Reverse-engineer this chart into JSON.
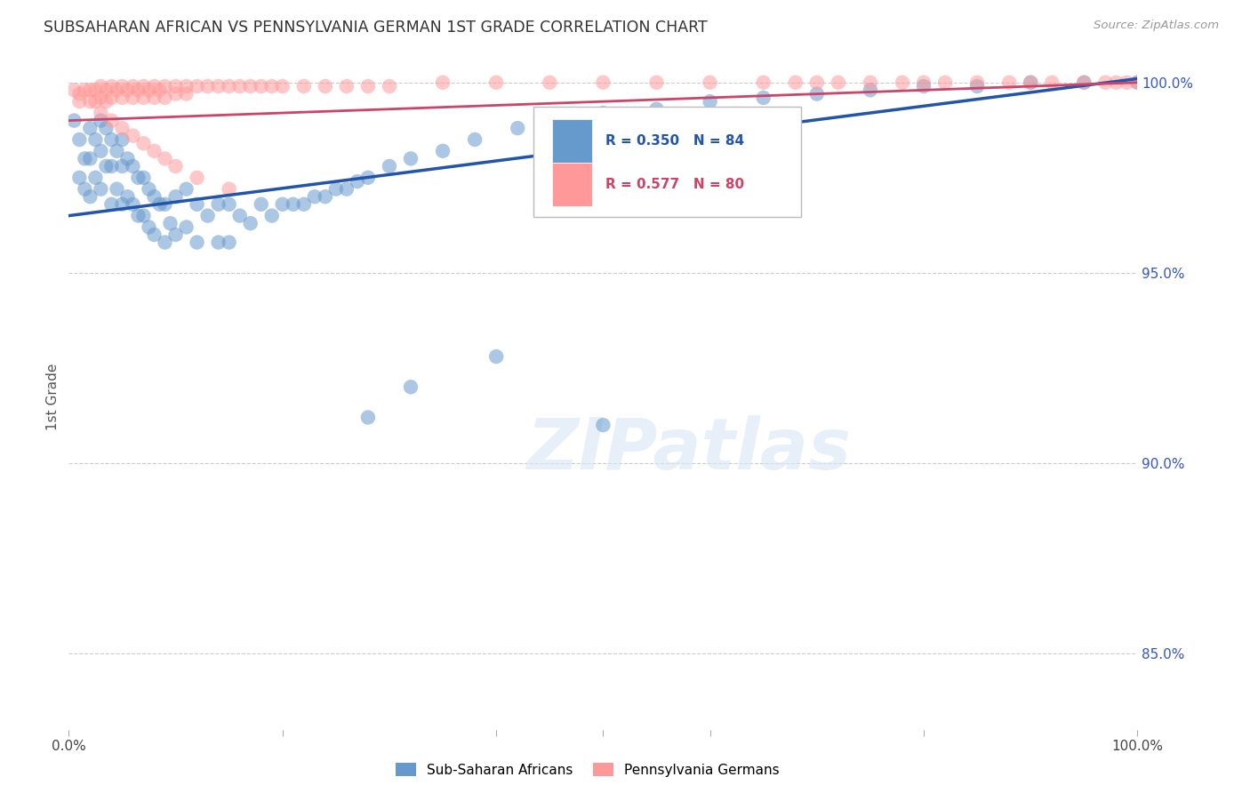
{
  "title": "SUBSAHARAN AFRICAN VS PENNSYLVANIA GERMAN 1ST GRADE CORRELATION CHART",
  "source": "Source: ZipAtlas.com",
  "ylabel": "1st Grade",
  "blue_R": 0.35,
  "blue_N": 84,
  "pink_R": 0.577,
  "pink_N": 80,
  "blue_color": "#6699CC",
  "pink_color": "#FF9999",
  "blue_line_color": "#2255AA",
  "pink_line_color": "#CC4466",
  "legend_label_blue": "Sub-Saharan Africans",
  "legend_label_pink": "Pennsylvania Germans",
  "watermark": "ZIPatlas",
  "xlim": [
    0.0,
    1.0
  ],
  "ylim": [
    0.83,
    1.005
  ],
  "yticks": [
    0.85,
    0.9,
    0.95,
    1.0
  ],
  "ytick_labels": [
    "85.0%",
    "90.0%",
    "95.0%",
    "100.0%"
  ],
  "blue_trend_start": 0.965,
  "blue_trend_end": 1.001,
  "pink_trend_start": 0.99,
  "pink_trend_end": 1.0,
  "blue_x": [
    0.005,
    0.01,
    0.01,
    0.015,
    0.015,
    0.02,
    0.02,
    0.02,
    0.025,
    0.025,
    0.03,
    0.03,
    0.03,
    0.035,
    0.035,
    0.04,
    0.04,
    0.04,
    0.045,
    0.045,
    0.05,
    0.05,
    0.05,
    0.055,
    0.055,
    0.06,
    0.06,
    0.065,
    0.065,
    0.07,
    0.07,
    0.075,
    0.075,
    0.08,
    0.08,
    0.085,
    0.09,
    0.09,
    0.095,
    0.1,
    0.1,
    0.11,
    0.11,
    0.12,
    0.12,
    0.13,
    0.14,
    0.14,
    0.15,
    0.15,
    0.16,
    0.17,
    0.18,
    0.19,
    0.2,
    0.21,
    0.22,
    0.23,
    0.24,
    0.25,
    0.26,
    0.27,
    0.28,
    0.3,
    0.32,
    0.35,
    0.38,
    0.42,
    0.45,
    0.5,
    0.55,
    0.6,
    0.65,
    0.7,
    0.75,
    0.8,
    0.85,
    0.9,
    0.95,
    1.0,
    0.28,
    0.32,
    0.4,
    0.5
  ],
  "blue_y": [
    0.99,
    0.985,
    0.975,
    0.98,
    0.972,
    0.988,
    0.98,
    0.97,
    0.985,
    0.975,
    0.99,
    0.982,
    0.972,
    0.988,
    0.978,
    0.985,
    0.978,
    0.968,
    0.982,
    0.972,
    0.985,
    0.978,
    0.968,
    0.98,
    0.97,
    0.978,
    0.968,
    0.975,
    0.965,
    0.975,
    0.965,
    0.972,
    0.962,
    0.97,
    0.96,
    0.968,
    0.968,
    0.958,
    0.963,
    0.97,
    0.96,
    0.972,
    0.962,
    0.968,
    0.958,
    0.965,
    0.968,
    0.958,
    0.968,
    0.958,
    0.965,
    0.963,
    0.968,
    0.965,
    0.968,
    0.968,
    0.968,
    0.97,
    0.97,
    0.972,
    0.972,
    0.974,
    0.975,
    0.978,
    0.98,
    0.982,
    0.985,
    0.988,
    0.99,
    0.992,
    0.993,
    0.995,
    0.996,
    0.997,
    0.998,
    0.999,
    0.999,
    1.0,
    1.0,
    1.0,
    0.912,
    0.92,
    0.928,
    0.91
  ],
  "pink_x": [
    0.005,
    0.01,
    0.01,
    0.015,
    0.02,
    0.02,
    0.025,
    0.025,
    0.03,
    0.03,
    0.035,
    0.035,
    0.04,
    0.04,
    0.045,
    0.05,
    0.05,
    0.055,
    0.06,
    0.06,
    0.065,
    0.07,
    0.07,
    0.075,
    0.08,
    0.08,
    0.085,
    0.09,
    0.09,
    0.1,
    0.1,
    0.11,
    0.11,
    0.12,
    0.13,
    0.14,
    0.15,
    0.16,
    0.17,
    0.18,
    0.19,
    0.2,
    0.22,
    0.24,
    0.26,
    0.28,
    0.3,
    0.35,
    0.4,
    0.45,
    0.5,
    0.55,
    0.6,
    0.65,
    0.68,
    0.7,
    0.72,
    0.75,
    0.78,
    0.8,
    0.82,
    0.85,
    0.88,
    0.9,
    0.92,
    0.95,
    0.97,
    0.98,
    0.99,
    1.0,
    0.03,
    0.04,
    0.05,
    0.06,
    0.07,
    0.08,
    0.09,
    0.1,
    0.12,
    0.15
  ],
  "pink_y": [
    0.998,
    0.997,
    0.995,
    0.998,
    0.998,
    0.995,
    0.998,
    0.995,
    0.999,
    0.996,
    0.998,
    0.995,
    0.999,
    0.996,
    0.998,
    0.999,
    0.996,
    0.998,
    0.999,
    0.996,
    0.998,
    0.999,
    0.996,
    0.998,
    0.999,
    0.996,
    0.998,
    0.999,
    0.996,
    0.999,
    0.997,
    0.999,
    0.997,
    0.999,
    0.999,
    0.999,
    0.999,
    0.999,
    0.999,
    0.999,
    0.999,
    0.999,
    0.999,
    0.999,
    0.999,
    0.999,
    0.999,
    1.0,
    1.0,
    1.0,
    1.0,
    1.0,
    1.0,
    1.0,
    1.0,
    1.0,
    1.0,
    1.0,
    1.0,
    1.0,
    1.0,
    1.0,
    1.0,
    1.0,
    1.0,
    1.0,
    1.0,
    1.0,
    1.0,
    1.0,
    0.992,
    0.99,
    0.988,
    0.986,
    0.984,
    0.982,
    0.98,
    0.978,
    0.975,
    0.972
  ]
}
